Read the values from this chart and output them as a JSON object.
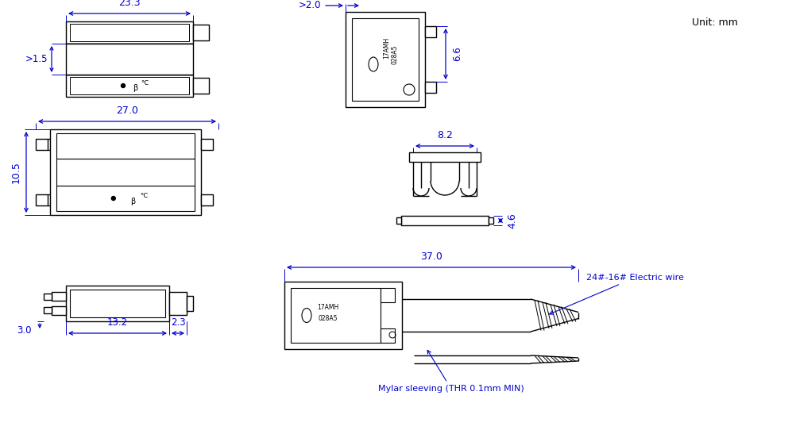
{
  "bg_color": "#ffffff",
  "line_color": "#000000",
  "dim_color": "#0000cd",
  "unit_text": "Unit: mm",
  "dim_23_3": "23.3",
  "dim_1_5": ">1.5",
  "dim_27_0": "27.0",
  "dim_10_5": "10.5",
  "dim_13_2": "13.2",
  "dim_2_3": "2.3",
  "dim_3_0": "3.0",
  "dim_2_0": ">2.0",
  "dim_6_6": "6.6",
  "dim_8_2": "8.2",
  "dim_4_6": "4.6",
  "dim_37_0": "37.0",
  "dim_24_16": "24#-16# Electric wire",
  "dim_mylar": "Mylar sleeving (THR 0.1mm MIN)"
}
